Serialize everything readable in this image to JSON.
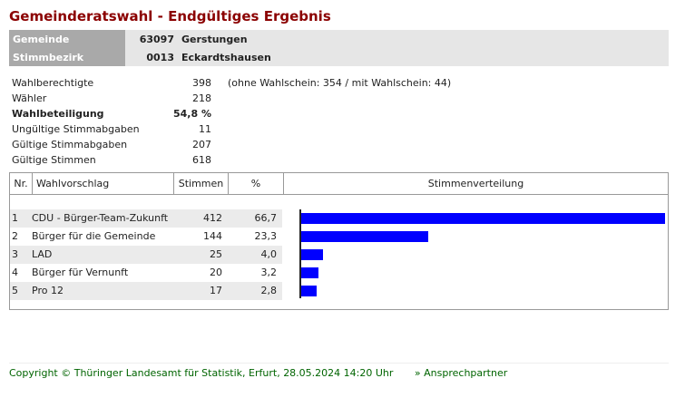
{
  "title": "Gemeinderatswahl - Endgültiges Ergebnis",
  "header": {
    "gemeinde_label": "Gemeinde",
    "gemeinde_code": "63097",
    "gemeinde_name": "Gerstungen",
    "bezirk_label": "Stimmbezirk",
    "bezirk_code": "0013",
    "bezirk_name": "Eckardtshausen"
  },
  "stats": [
    {
      "label": "Wahlberechtigte",
      "value": "398",
      "extra": "(ohne Wahlschein: 354 / mit Wahlschein: 44)"
    },
    {
      "label": "Wähler",
      "value": "218",
      "extra": ""
    },
    {
      "label": "Wahlbeteiligung",
      "value": "54,8 %",
      "extra": ""
    },
    {
      "label": "Ungültige Stimmabgaben",
      "value": "11",
      "extra": ""
    },
    {
      "label": "Gültige Stimmabgaben",
      "value": "207",
      "extra": ""
    },
    {
      "label": "Gültige Stimmen",
      "value": "618",
      "extra": ""
    }
  ],
  "table": {
    "headers": [
      "Nr.",
      "Wahlvorschlag",
      "Stimmen",
      "%",
      "Stimmenverteilung"
    ],
    "rows": [
      {
        "nr": "1",
        "name": "CDU - Bürger-Team-Zukunft",
        "votes": "412",
        "pct": "66,7"
      },
      {
        "nr": "2",
        "name": "Bürger für die Gemeinde",
        "votes": "144",
        "pct": "23,3"
      },
      {
        "nr": "3",
        "name": "LAD",
        "votes": "25",
        "pct": "4,0"
      },
      {
        "nr": "4",
        "name": "Bürger für Vernunft",
        "votes": "20",
        "pct": "3,2"
      },
      {
        "nr": "5",
        "name": "Pro 12",
        "votes": "17",
        "pct": "2,8"
      }
    ]
  },
  "chart_data": {
    "type": "bar",
    "categories": [
      "CDU - Bürger-Team-Zukunft",
      "Bürger für die Gemeinde",
      "LAD",
      "Bürger für Vernunft",
      "Pro 12"
    ],
    "values": [
      412,
      144,
      25,
      20,
      17
    ],
    "title": "Stimmenverteilung",
    "color": "#0000ff"
  },
  "footer": {
    "copyright": "Copyright © Thüringer Landesamt für Statistik, Erfurt, 28.05.2024 14:20 Uhr",
    "link": "» Ansprechpartner"
  }
}
